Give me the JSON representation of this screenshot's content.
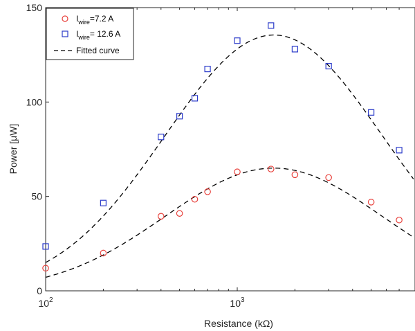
{
  "chart_data": {
    "type": "scatter",
    "title": "",
    "xlabel": "Resistance (kΩ)",
    "ylabel": "Power [μW]",
    "xscale": "log",
    "xlim": [
      100,
      7000
    ],
    "ylim": [
      0,
      150
    ],
    "yticks": [
      0,
      50,
      100,
      150
    ],
    "xticks": [
      {
        "value": 100,
        "base": "10",
        "exp": "2"
      },
      {
        "value": 1000,
        "base": "10",
        "exp": "3"
      }
    ],
    "grid": false,
    "legend_position": "top-left",
    "legend": {
      "series1_label": {
        "main": "I",
        "sub": "wire",
        "rest": "=7.2 A"
      },
      "series2_label": {
        "main": "I",
        "sub": "wire",
        "rest": "= 12.6 A"
      },
      "fit_label": "Fitted curve"
    },
    "series": [
      {
        "name": "Iwire=7.2 A",
        "marker": "circle",
        "color": "#e8413c",
        "points": [
          [
            100,
            12
          ],
          [
            200,
            20
          ],
          [
            400,
            39.5
          ],
          [
            500,
            41
          ],
          [
            600,
            48.5
          ],
          [
            700,
            52.5
          ],
          [
            1000,
            63
          ],
          [
            1500,
            64.5
          ],
          [
            2000,
            61.5
          ],
          [
            3000,
            60
          ],
          [
            5000,
            47
          ],
          [
            7000,
            37.5
          ]
        ]
      },
      {
        "name": "Iwire= 12.6 A",
        "marker": "square",
        "color": "#2b3bc9",
        "points": [
          [
            100,
            23.5
          ],
          [
            200,
            46.5
          ],
          [
            400,
            81.5
          ],
          [
            500,
            92.5
          ],
          [
            600,
            102
          ],
          [
            700,
            117.5
          ],
          [
            1000,
            132.5
          ],
          [
            1500,
            140.5
          ],
          [
            2000,
            128
          ],
          [
            3000,
            119
          ],
          [
            5000,
            94.5
          ],
          [
            7000,
            74.5
          ]
        ]
      }
    ],
    "fitted_curves": [
      {
        "name": "Fitted curve",
        "peak_resistance": 1550,
        "peak_power": 65,
        "style": "dashed",
        "color": "#000000"
      },
      {
        "name": "Fitted curve",
        "peak_resistance": 1550,
        "peak_power": 135.5,
        "style": "dashed",
        "color": "#000000"
      }
    ]
  }
}
